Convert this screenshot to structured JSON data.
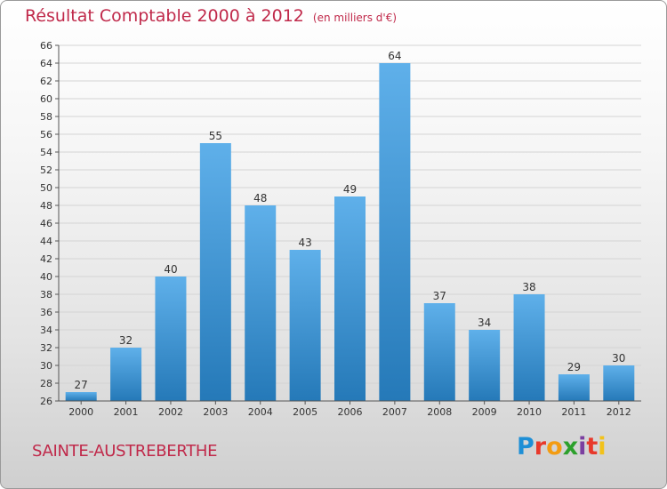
{
  "title": {
    "main": "Résultat Comptable 2000 à 2012",
    "unit": "(en milliers d'€)"
  },
  "footer": {
    "commune": "SAINTE-AUSTREBERTHE",
    "logo_text": "Proxiti",
    "logo_colors": [
      "#1e8fd6",
      "#e8392b",
      "#f39c12",
      "#2ca02c",
      "#7b3fa0",
      "#e8392b",
      "#f2c21a"
    ]
  },
  "colors": {
    "bar_top": "#5fb0ea",
    "bar_bottom": "#2579b8",
    "grid": "#d4d4d4",
    "axis": "#555555",
    "label": "#333333",
    "title": "#c0294a"
  },
  "chart_data": {
    "type": "bar",
    "title": "Résultat Comptable 2000 à 2012 (en milliers d'€)",
    "xlabel": "",
    "ylabel": "",
    "categories": [
      "2000",
      "2001",
      "2002",
      "2003",
      "2004",
      "2005",
      "2006",
      "2007",
      "2008",
      "2009",
      "2010",
      "2011",
      "2012"
    ],
    "values": [
      27,
      32,
      40,
      55,
      48,
      43,
      49,
      64,
      37,
      34,
      38,
      29,
      30
    ],
    "ylim": [
      26,
      66
    ],
    "ytick_step": 2,
    "grid": true,
    "legend": "none"
  }
}
